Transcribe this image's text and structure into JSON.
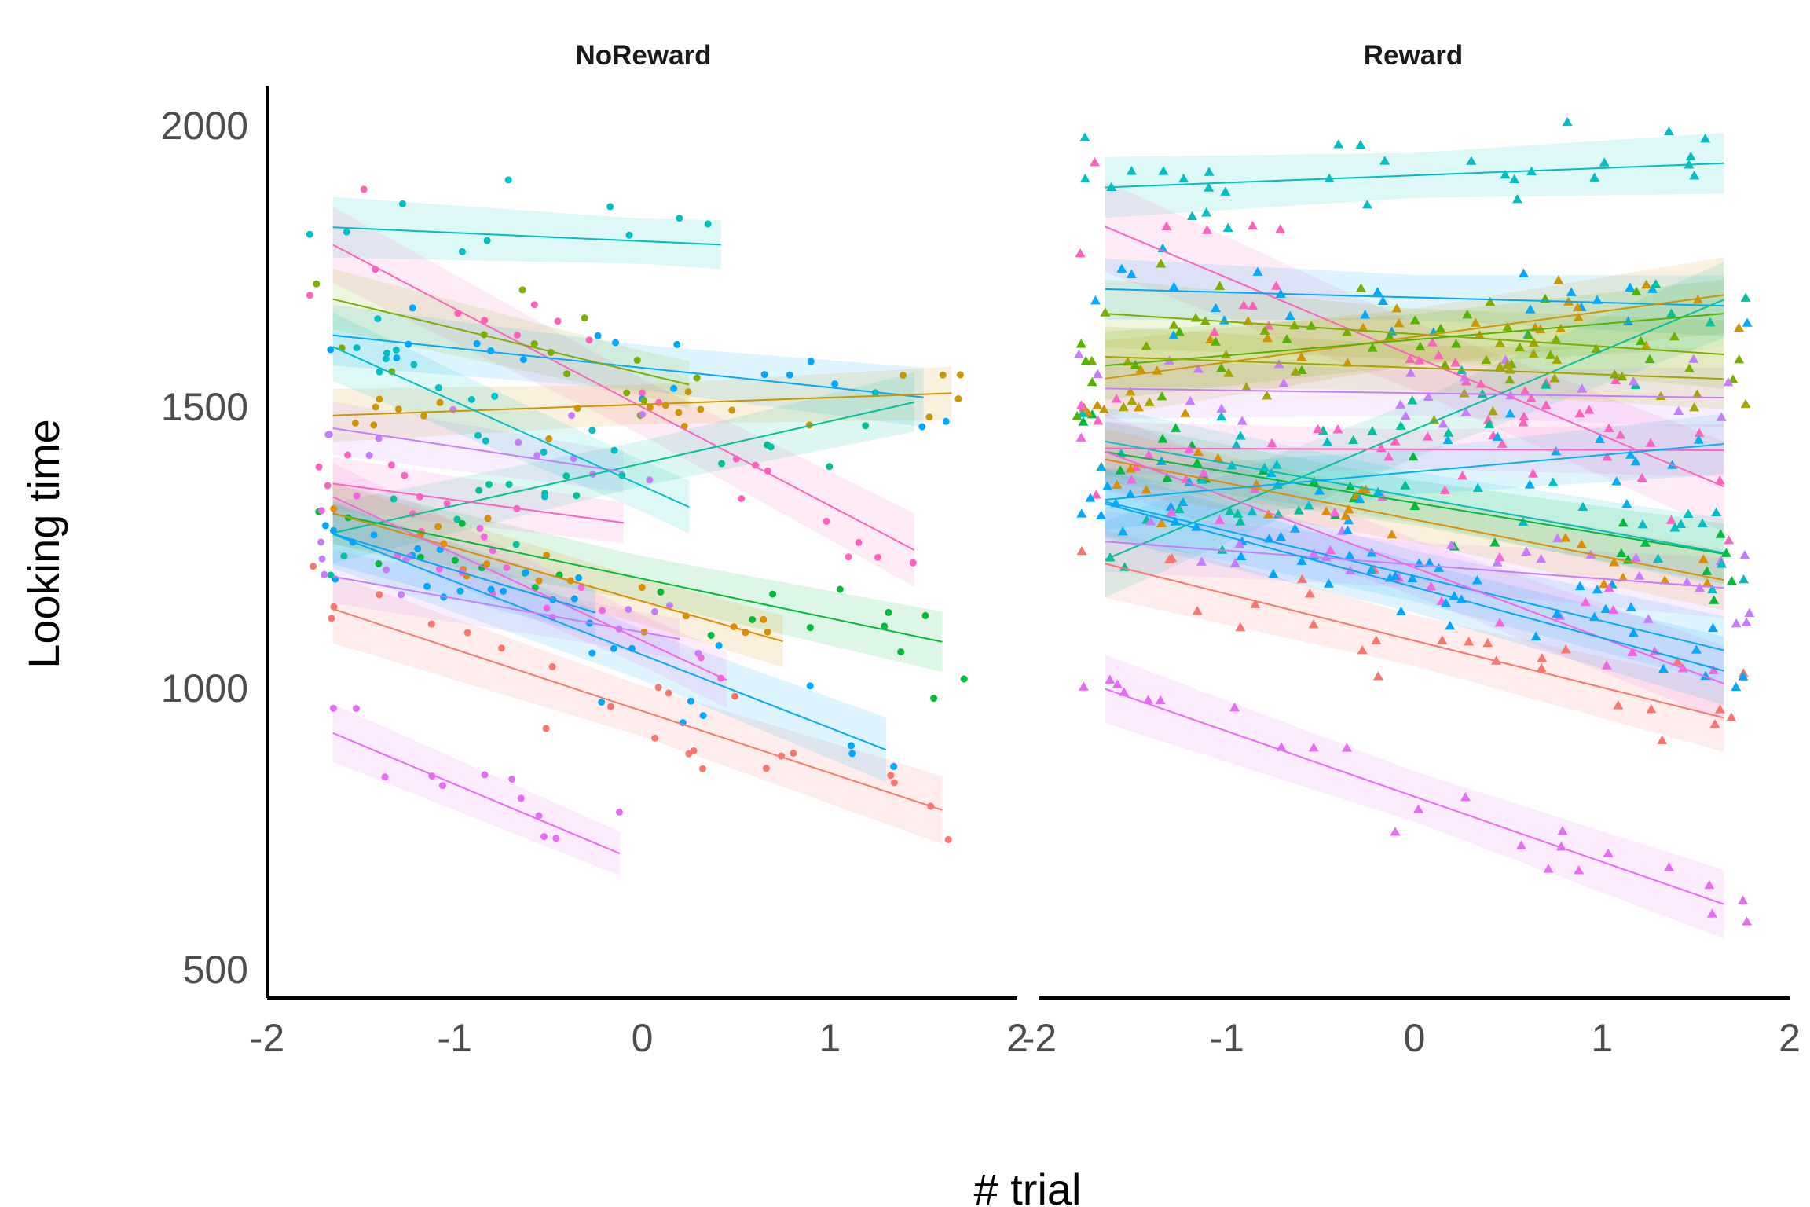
{
  "chart_data": {
    "type": "scatter",
    "xlabel": "# trial",
    "ylabel": "Looking time",
    "ylim": [
      450,
      2070
    ],
    "xlim": [
      -2,
      2
    ],
    "x_ticks": [
      "-2",
      "-1",
      "0",
      "1",
      "2"
    ],
    "y_ticks": [
      "500",
      "1000",
      "1500",
      "2000"
    ],
    "y_tick_values": [
      500,
      1000,
      1500,
      2000
    ],
    "x_tick_values": [
      -2,
      -1,
      0,
      1,
      2
    ],
    "legend": "none",
    "panels": [
      {
        "title": "NoReward",
        "marker": "circle",
        "series": [
          {
            "color": "#00BFC4",
            "x_range": [
              -1.65,
              0.42
            ],
            "intercept": 1795,
            "slope": -15,
            "se": 40,
            "seed": 1,
            "n": 10,
            "sd": 38
          },
          {
            "color": "#F8766D",
            "x_range": [
              -1.65,
              1.6
            ],
            "intercept": 960,
            "slope": -110,
            "se": 45,
            "seed": 2,
            "n": 24,
            "sd": 50
          },
          {
            "color": "#E76BF3",
            "x_range": [
              -1.65,
              -0.12
            ],
            "intercept": 690,
            "slope": -140,
            "se": 38,
            "seed": 3,
            "n": 12,
            "sd": 35
          },
          {
            "color": "#FF62BC",
            "x_range": [
              -1.65,
              1.45
            ],
            "intercept": 1500,
            "slope": -175,
            "se": 50,
            "seed": 4,
            "n": 20,
            "sd": 55
          },
          {
            "color": "#00A9FF",
            "x_range": [
              -1.65,
              1.5
            ],
            "intercept": 1570,
            "slope": -35,
            "se": 40,
            "seed": 5,
            "n": 18,
            "sd": 40
          },
          {
            "color": "#7CAE00",
            "x_range": [
              -1.65,
              0.25
            ],
            "intercept": 1560,
            "slope": -80,
            "se": 40,
            "seed": 6,
            "n": 14,
            "sd": 40
          },
          {
            "color": "#00BA38",
            "x_range": [
              -1.65,
              1.6
            ],
            "intercept": 1195,
            "slope": -70,
            "se": 40,
            "seed": 7,
            "n": 22,
            "sd": 45
          },
          {
            "color": "#CD9600",
            "x_range": [
              -1.65,
              1.65
            ],
            "intercept": 1505,
            "slope": 12,
            "se": 35,
            "seed": 8,
            "n": 22,
            "sd": 35
          },
          {
            "color": "#00C19A",
            "x_range": [
              -1.65,
              1.45
            ],
            "intercept": 1400,
            "slope": 75,
            "se": 40,
            "seed": 9,
            "n": 18,
            "sd": 40
          },
          {
            "color": "#00A9FF",
            "x_range": [
              -1.65,
              1.3
            ],
            "intercept": 1060,
            "slope": -130,
            "se": 45,
            "seed": 10,
            "n": 20,
            "sd": 45
          },
          {
            "color": "#C77CFF",
            "x_range": [
              -1.65,
              -0.1
            ],
            "intercept": 1380,
            "slope": -50,
            "se": 35,
            "seed": 11,
            "n": 12,
            "sd": 40
          },
          {
            "color": "#C77CFF",
            "x_range": [
              -1.65,
              0.2
            ],
            "intercept": 1100,
            "slope": -60,
            "se": 35,
            "seed": 12,
            "n": 12,
            "sd": 40
          },
          {
            "color": "#FF61C3",
            "x_range": [
              -1.65,
              -0.1
            ],
            "intercept": 1290,
            "slope": -45,
            "se": 35,
            "seed": 13,
            "n": 10,
            "sd": 40
          },
          {
            "color": "#00BFC4",
            "x_range": [
              -1.65,
              0.25
            ],
            "intercept": 1360,
            "slope": -150,
            "se": 45,
            "seed": 14,
            "n": 16,
            "sd": 45
          },
          {
            "color": "#DE8C00",
            "x_range": [
              -1.65,
              0.75
            ],
            "intercept": 1155,
            "slope": -95,
            "se": 40,
            "seed": 15,
            "n": 18,
            "sd": 40
          },
          {
            "color": "#F564E3",
            "x_range": [
              -1.65,
              0.45
            ],
            "intercept": 1085,
            "slope": -155,
            "se": 45,
            "seed": 16,
            "n": 16,
            "sd": 45
          },
          {
            "color": "#00A5FF",
            "x_range": [
              -1.65,
              -0.25
            ],
            "intercept": 1110,
            "slope": -100,
            "se": 40,
            "seed": 17,
            "n": 10,
            "sd": 40
          }
        ]
      },
      {
        "title": "Reward",
        "marker": "triangle",
        "series": [
          {
            "color": "#00BFC4",
            "x_range": [
              -1.65,
              1.65
            ],
            "intercept": 1912,
            "slope": 13,
            "se": 40,
            "seed": 21,
            "n": 30,
            "sd": 40
          },
          {
            "color": "#F8766D",
            "x_range": [
              -1.65,
              1.65
            ],
            "intercept": 1085,
            "slope": -83,
            "se": 45,
            "seed": 22,
            "n": 28,
            "sd": 45
          },
          {
            "color": "#E76BF3",
            "x_range": [
              -1.65,
              1.65
            ],
            "intercept": 808,
            "slope": -116,
            "se": 45,
            "seed": 23,
            "n": 24,
            "sd": 40
          },
          {
            "color": "#FF62BC",
            "x_range": [
              -1.65,
              1.65
            ],
            "intercept": 1590,
            "slope": -140,
            "se": 60,
            "seed": 24,
            "n": 30,
            "sd": 55
          },
          {
            "color": "#00A9FF",
            "x_range": [
              -1.65,
              1.65
            ],
            "intercept": 1695,
            "slope": -9,
            "se": 40,
            "seed": 25,
            "n": 26,
            "sd": 40
          },
          {
            "color": "#7CAE00",
            "x_range": [
              -1.65,
              1.65
            ],
            "intercept": 1630,
            "slope": -22,
            "se": 45,
            "seed": 26,
            "n": 28,
            "sd": 45
          },
          {
            "color": "#00BA38",
            "x_range": [
              -1.65,
              1.65
            ],
            "intercept": 1330,
            "slope": -55,
            "se": 40,
            "seed": 27,
            "n": 28,
            "sd": 45
          },
          {
            "color": "#CD9600",
            "x_range": [
              -1.65,
              1.65
            ],
            "intercept": 1625,
            "slope": 45,
            "se": 50,
            "seed": 28,
            "n": 28,
            "sd": 45
          },
          {
            "color": "#00C19A",
            "x_range": [
              -1.65,
              1.65
            ],
            "intercept": 1460,
            "slope": 140,
            "se": 50,
            "seed": 29,
            "n": 26,
            "sd": 50
          },
          {
            "color": "#00A9FF",
            "x_range": [
              -1.65,
              1.65
            ],
            "intercept": 1200,
            "slope": -80,
            "se": 45,
            "seed": 30,
            "n": 26,
            "sd": 45
          },
          {
            "color": "#C77CFF",
            "x_range": [
              -1.65,
              1.65
            ],
            "intercept": 1525,
            "slope": -5,
            "se": 40,
            "seed": 31,
            "n": 24,
            "sd": 45
          },
          {
            "color": "#C77CFF",
            "x_range": [
              -1.65,
              1.65
            ],
            "intercept": 1220,
            "slope": -25,
            "se": 40,
            "seed": 32,
            "n": 24,
            "sd": 45
          },
          {
            "color": "#FF61C3",
            "x_range": [
              -1.65,
              1.65
            ],
            "intercept": 1425,
            "slope": -1,
            "se": 35,
            "seed": 33,
            "n": 24,
            "sd": 45
          },
          {
            "color": "#00BFC4",
            "x_range": [
              -1.65,
              1.65
            ],
            "intercept": 1340,
            "slope": -60,
            "se": 45,
            "seed": 34,
            "n": 26,
            "sd": 45
          },
          {
            "color": "#DE8C00",
            "x_range": [
              -1.65,
              1.65
            ],
            "intercept": 1300,
            "slope": -65,
            "se": 40,
            "seed": 35,
            "n": 26,
            "sd": 45
          },
          {
            "color": "#F564E3",
            "x_range": [
              -1.65,
              1.65
            ],
            "intercept": 1215,
            "slope": -125,
            "se": 50,
            "seed": 36,
            "n": 26,
            "sd": 45
          },
          {
            "color": "#00A5FF",
            "x_range": [
              -1.65,
              1.65
            ],
            "intercept": 1180,
            "slope": -90,
            "se": 45,
            "seed": 37,
            "n": 24,
            "sd": 45
          },
          {
            "color": "#53B400",
            "x_range": [
              -1.65,
              1.65
            ],
            "intercept": 1620,
            "slope": 28,
            "se": 45,
            "seed": 38,
            "n": 24,
            "sd": 45
          },
          {
            "color": "#A3A500",
            "x_range": [
              -1.65,
              1.65
            ],
            "intercept": 1570,
            "slope": -12,
            "se": 40,
            "seed": 39,
            "n": 24,
            "sd": 45
          },
          {
            "color": "#00B0F6",
            "x_range": [
              -1.65,
              1.65
            ],
            "intercept": 1385,
            "slope": 30,
            "se": 40,
            "seed": 40,
            "n": 22,
            "sd": 45
          }
        ]
      }
    ]
  }
}
